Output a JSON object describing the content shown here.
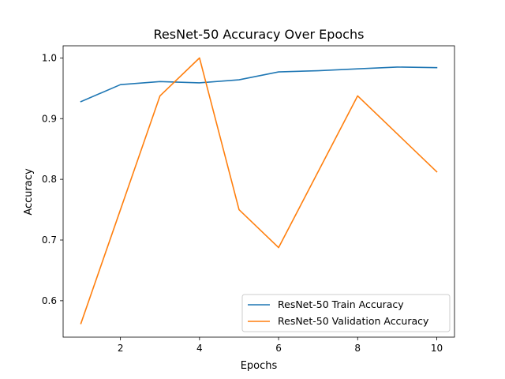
{
  "chart_data": {
    "type": "line",
    "title": "ResNet-50 Accuracy Over Epochs",
    "xlabel": "Epochs",
    "ylabel": "Accuracy",
    "xlim": [
      0.55,
      10.45
    ],
    "ylim": [
      0.54,
      1.02
    ],
    "xticks": [
      2,
      4,
      6,
      8,
      10
    ],
    "yticks": [
      0.6,
      0.7,
      0.8,
      0.9,
      1.0
    ],
    "ytick_labels": [
      "0.6",
      "0.7",
      "0.8",
      "0.9",
      "1.0"
    ],
    "grid": false,
    "legend_position": "lower-right",
    "x": [
      1,
      2,
      3,
      4,
      5,
      6,
      7,
      8,
      9,
      10
    ],
    "series": [
      {
        "name": "ResNet-50 Train Accuracy",
        "color": "#1f77b4",
        "values": [
          0.928,
          0.956,
          0.961,
          0.959,
          0.964,
          0.977,
          0.979,
          0.982,
          0.985,
          0.984
        ]
      },
      {
        "name": "ResNet-50 Validation Accuracy",
        "color": "#ff7f0e",
        "values": [
          0.5625,
          0.75,
          0.9375,
          1.0,
          0.75,
          0.6875,
          0.8125,
          0.9375,
          0.875,
          0.8125
        ]
      }
    ]
  }
}
